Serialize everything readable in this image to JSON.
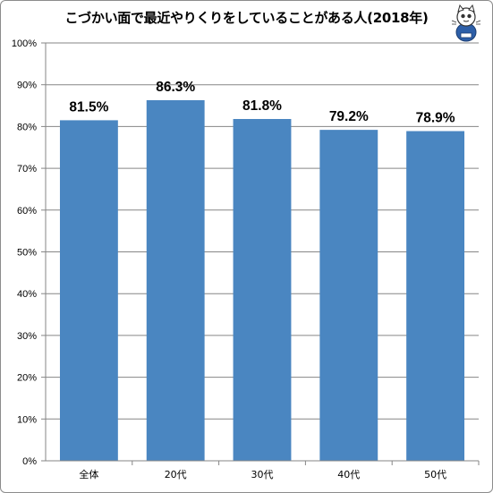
{
  "chart_data": {
    "type": "bar",
    "title": "こづかい面で最近やりくりをしていることがある人(2018年)",
    "categories": [
      "全体",
      "20代",
      "30代",
      "40代",
      "50代"
    ],
    "values": [
      81.5,
      86.3,
      81.8,
      79.2,
      78.9
    ],
    "data_labels": [
      "81.5%",
      "86.3%",
      "81.8%",
      "79.2%",
      "78.9%"
    ],
    "y_ticks": [
      "0%",
      "10%",
      "20%",
      "30%",
      "40%",
      "50%",
      "60%",
      "70%",
      "80%",
      "90%",
      "100%"
    ],
    "ylim": [
      0,
      100
    ],
    "grid": true,
    "legend": "none",
    "bar_color": "#4a86c1",
    "grid_color": "#868686"
  },
  "mascot_icon": "cat-mascot-logo"
}
